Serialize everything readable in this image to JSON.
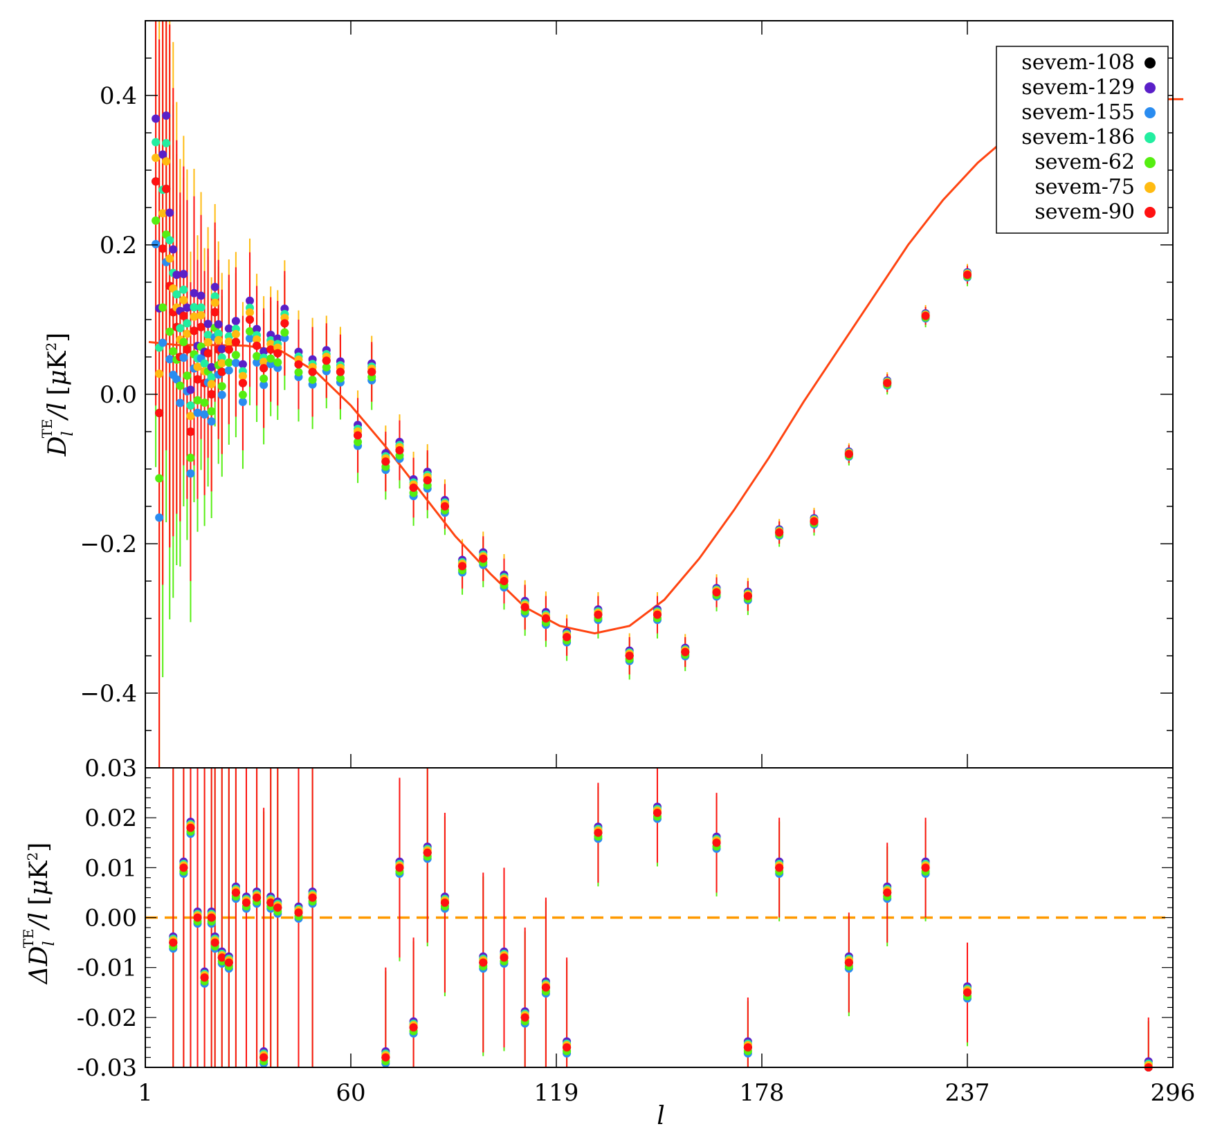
{
  "chart_data": [
    {
      "type": "scatter",
      "panel": "top",
      "ylabel": "D_l^TE / l [μK²]",
      "ylabel_parts": {
        "sym": "D",
        "sub": "l",
        "sup": "TE",
        "rest": "/l",
        "unit_open": "[",
        "unit_mu": "μ",
        "unit_k": "K",
        "unit_sup": "2",
        "unit_close": "]"
      },
      "xlim": [
        1,
        296
      ],
      "ylim": [
        -0.5,
        0.5
      ],
      "x_ticks": [
        1,
        60,
        119,
        178,
        237,
        296
      ],
      "y_ticks": [
        "-0.4",
        "-0.2",
        "0.0",
        "0.2",
        "0.4"
      ],
      "legend_position": "top-right",
      "legend": [
        {
          "label": "sevem-108",
          "color": "#000000"
        },
        {
          "label": "sevem-129",
          "color": "#5a1fc8"
        },
        {
          "label": "sevem-155",
          "color": "#2a8cf0"
        },
        {
          "label": "sevem-186",
          "color": "#22eea0"
        },
        {
          "label": "sevem-62",
          "color": "#55ee11"
        },
        {
          "label": "sevem-75",
          "color": "#ffbb11"
        },
        {
          "label": "sevem-90",
          "color": "#ff1111"
        }
      ],
      "model_curve_color": "#ff4411",
      "model_curve": {
        "x": [
          2,
          10,
          20,
          30,
          40,
          50,
          60,
          70,
          80,
          90,
          100,
          110,
          120,
          130,
          140,
          150,
          160,
          170,
          180,
          190,
          200,
          210,
          220,
          230,
          240,
          250,
          260,
          270,
          280,
          290,
          300
        ],
        "y": [
          0.07,
          0.066,
          0.066,
          0.065,
          0.058,
          0.03,
          -0.015,
          -0.07,
          -0.13,
          -0.19,
          -0.24,
          -0.285,
          -0.31,
          -0.32,
          -0.31,
          -0.275,
          -0.22,
          -0.155,
          -0.085,
          -0.01,
          0.06,
          0.13,
          0.2,
          0.26,
          0.31,
          0.35,
          0.37,
          0.385,
          0.39,
          0.395,
          0.395
        ]
      },
      "points": [
        {
          "x": 4,
          "y": 0.285,
          "err": 0.3
        },
        {
          "x": 5,
          "y": -0.025,
          "err": 0.5
        },
        {
          "x": 6,
          "y": 0.195,
          "err": 0.45
        },
        {
          "x": 7,
          "y": 0.275,
          "err": 0.35
        },
        {
          "x": 8,
          "y": 0.145,
          "err": 0.35
        },
        {
          "x": 9,
          "y": 0.11,
          "err": 0.3
        },
        {
          "x": 10,
          "y": 0.09,
          "err": 0.25
        },
        {
          "x": 11,
          "y": 0.05,
          "err": 0.22
        },
        {
          "x": 12,
          "y": 0.105,
          "err": 0.2
        },
        {
          "x": 13,
          "y": 0.06,
          "err": 0.2
        },
        {
          "x": 14,
          "y": -0.05,
          "err": 0.2
        },
        {
          "x": 15,
          "y": 0.085,
          "err": 0.18
        },
        {
          "x": 16,
          "y": 0.02,
          "err": 0.16
        },
        {
          "x": 17,
          "y": 0.09,
          "err": 0.15
        },
        {
          "x": 18,
          "y": 0.015,
          "err": 0.15
        },
        {
          "x": 19,
          "y": 0.055,
          "err": 0.14
        },
        {
          "x": 20,
          "y": 0.0,
          "err": 0.13
        },
        {
          "x": 21,
          "y": 0.11,
          "err": 0.12
        },
        {
          "x": 22,
          "y": 0.06,
          "err": 0.12
        },
        {
          "x": 23,
          "y": 0.03,
          "err": 0.11
        },
        {
          "x": 25,
          "y": 0.06,
          "err": 0.1
        },
        {
          "x": 27,
          "y": 0.07,
          "err": 0.1
        },
        {
          "x": 29,
          "y": 0.015,
          "err": 0.09
        },
        {
          "x": 31,
          "y": 0.1,
          "err": 0.09
        },
        {
          "x": 33,
          "y": 0.065,
          "err": 0.08
        },
        {
          "x": 35,
          "y": 0.035,
          "err": 0.08
        },
        {
          "x": 37,
          "y": 0.06,
          "err": 0.07
        },
        {
          "x": 39,
          "y": 0.055,
          "err": 0.07
        },
        {
          "x": 41,
          "y": 0.095,
          "err": 0.07
        },
        {
          "x": 45,
          "y": 0.04,
          "err": 0.06
        },
        {
          "x": 49,
          "y": 0.03,
          "err": 0.06
        },
        {
          "x": 53,
          "y": 0.045,
          "err": 0.05
        },
        {
          "x": 57,
          "y": 0.03,
          "err": 0.05
        },
        {
          "x": 62,
          "y": -0.055,
          "err": 0.05
        },
        {
          "x": 66,
          "y": 0.03,
          "err": 0.04
        },
        {
          "x": 70,
          "y": -0.09,
          "err": 0.04
        },
        {
          "x": 74,
          "y": -0.075,
          "err": 0.04
        },
        {
          "x": 78,
          "y": -0.125,
          "err": 0.04
        },
        {
          "x": 82,
          "y": -0.115,
          "err": 0.04
        },
        {
          "x": 87,
          "y": -0.15,
          "err": 0.03
        },
        {
          "x": 92,
          "y": -0.23,
          "err": 0.03
        },
        {
          "x": 98,
          "y": -0.22,
          "err": 0.03
        },
        {
          "x": 104,
          "y": -0.25,
          "err": 0.03
        },
        {
          "x": 110,
          "y": -0.285,
          "err": 0.03
        },
        {
          "x": 116,
          "y": -0.3,
          "err": 0.03
        },
        {
          "x": 122,
          "y": -0.325,
          "err": 0.025
        },
        {
          "x": 131,
          "y": -0.295,
          "err": 0.025
        },
        {
          "x": 140,
          "y": -0.35,
          "err": 0.025
        },
        {
          "x": 148,
          "y": -0.295,
          "err": 0.025
        },
        {
          "x": 156,
          "y": -0.345,
          "err": 0.02
        },
        {
          "x": 165,
          "y": -0.265,
          "err": 0.02
        },
        {
          "x": 174,
          "y": -0.27,
          "err": 0.02
        },
        {
          "x": 183,
          "y": -0.185,
          "err": 0.015
        },
        {
          "x": 193,
          "y": -0.17,
          "err": 0.015
        },
        {
          "x": 203,
          "y": -0.08,
          "err": 0.012
        },
        {
          "x": 214,
          "y": 0.015,
          "err": 0.012
        },
        {
          "x": 225,
          "y": 0.105,
          "err": 0.012
        },
        {
          "x": 237,
          "y": 0.16,
          "err": 0.012
        },
        {
          "x": 249,
          "y": 0.295,
          "err": 0.012
        },
        {
          "x": 261,
          "y": 0.26,
          "err": 0.01
        },
        {
          "x": 273,
          "y": 0.43,
          "err": 0.01
        },
        {
          "x": 285,
          "y": 0.365,
          "err": 0.012
        }
      ]
    },
    {
      "type": "scatter",
      "panel": "bottom",
      "xlabel": "l",
      "ylabel": "ΔD_l^TE / l [μK²]",
      "ylabel_parts": {
        "sym": "ΔD",
        "sub": "l",
        "sup": "TE",
        "rest": "/l",
        "unit_open": "[",
        "unit_mu": "μ",
        "unit_k": "K",
        "unit_sup": "2",
        "unit_close": "]"
      },
      "xlim": [
        1,
        296
      ],
      "ylim": [
        -0.03,
        0.03
      ],
      "x_ticks": [
        1,
        60,
        119,
        178,
        237,
        296
      ],
      "x_tick_labels": [
        "1",
        "60",
        "119",
        "178",
        "237",
        "296"
      ],
      "y_ticks": [
        "-0.03",
        "-0.02",
        "-0.01",
        "0.00",
        "0.01",
        "0.02",
        "0.03"
      ],
      "zero_line_color": "#ff9900",
      "points": [
        {
          "x": 9,
          "y": -0.005
        },
        {
          "x": 12,
          "y": 0.01
        },
        {
          "x": 14,
          "y": 0.018
        },
        {
          "x": 16,
          "y": 0.0
        },
        {
          "x": 18,
          "y": -0.012
        },
        {
          "x": 20,
          "y": 0.0
        },
        {
          "x": 21,
          "y": -0.005
        },
        {
          "x": 23,
          "y": -0.008
        },
        {
          "x": 25,
          "y": -0.009
        },
        {
          "x": 27,
          "y": 0.005
        },
        {
          "x": 30,
          "y": 0.003
        },
        {
          "x": 33,
          "y": 0.004
        },
        {
          "x": 35,
          "y": -0.028
        },
        {
          "x": 37,
          "y": 0.003
        },
        {
          "x": 39,
          "y": 0.002
        },
        {
          "x": 45,
          "y": 0.001
        },
        {
          "x": 49,
          "y": 0.004
        },
        {
          "x": 70,
          "y": -0.028
        },
        {
          "x": 74,
          "y": 0.01
        },
        {
          "x": 78,
          "y": -0.022
        },
        {
          "x": 82,
          "y": 0.013
        },
        {
          "x": 87,
          "y": 0.003
        },
        {
          "x": 98,
          "y": -0.009
        },
        {
          "x": 104,
          "y": -0.008
        },
        {
          "x": 110,
          "y": -0.02
        },
        {
          "x": 116,
          "y": -0.014
        },
        {
          "x": 122,
          "y": -0.026
        },
        {
          "x": 131,
          "y": 0.017
        },
        {
          "x": 148,
          "y": 0.021
        },
        {
          "x": 165,
          "y": 0.015
        },
        {
          "x": 174,
          "y": -0.026
        },
        {
          "x": 183,
          "y": 0.01
        },
        {
          "x": 203,
          "y": -0.009
        },
        {
          "x": 214,
          "y": 0.005
        },
        {
          "x": 225,
          "y": 0.01
        },
        {
          "x": 237,
          "y": -0.015
        },
        {
          "x": 289,
          "y": -0.03
        }
      ]
    }
  ]
}
